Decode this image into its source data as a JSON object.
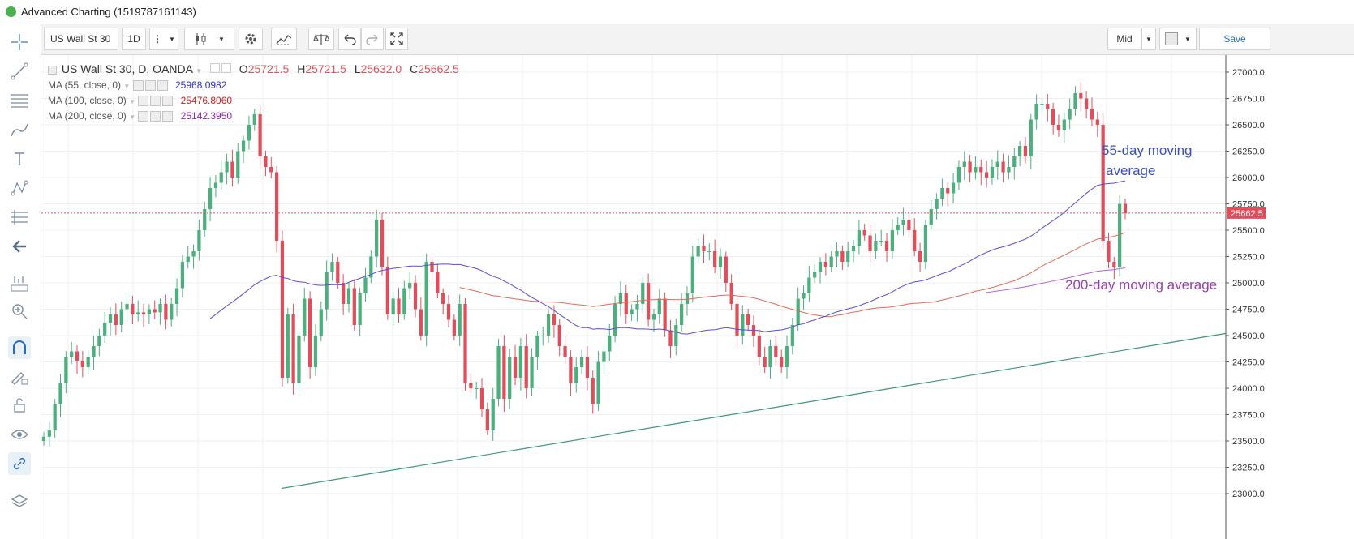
{
  "window": {
    "title": "Advanced Charting (1519787161143)"
  },
  "toolbar": {
    "symbol": "US Wall St 30",
    "interval": "1D",
    "more": "⋮",
    "price_mode": "Mid",
    "save": "Save"
  },
  "legend": {
    "title": "US Wall St 30, D, OANDA",
    "ohlc": {
      "o_label": "O",
      "o": "25721.5",
      "h_label": "H",
      "h": "25721.5",
      "l_label": "L",
      "l": "25632.0",
      "c_label": "C",
      "c": "25662.5"
    },
    "studies": [
      {
        "label": "MA (55, close, 0)",
        "value": "25968.0982",
        "color": "#3030c0"
      },
      {
        "label": "MA (100, close, 0)",
        "value": "25476.8060",
        "color": "#d02020"
      },
      {
        "label": "MA (200, close, 0)",
        "value": "25142.3950",
        "color": "#9020c0"
      }
    ]
  },
  "colors": {
    "up": "#4caf7d",
    "down": "#e04e5c",
    "ma55": "#5a4fcf",
    "ma100": "#e06a5a",
    "ma200": "#b060d8",
    "trend": "#3a9a70",
    "annot_blue": "#3a4fbf",
    "annot_purple": "#9a40b0"
  },
  "icons": [
    "crosshair-icon",
    "trend-line-icon",
    "fib-icon",
    "brush-icon",
    "text-icon",
    "pattern-icon",
    "measure-icon",
    "back-arrow-icon",
    "ruler-icon",
    "zoom-in-icon",
    "magnet-icon",
    "lock-drawing-icon",
    "lock-icon",
    "eye-icon",
    "link-icon",
    "layers-icon",
    "candles-icon",
    "indicators-icon",
    "compare-icon",
    "undo-icon",
    "redo-icon",
    "fullscreen-icon",
    "settings-icon"
  ],
  "chart_data": {
    "type": "candlestick",
    "title": "US Wall St 30, D, OANDA",
    "ylim": [
      23000,
      27000
    ],
    "y_ticks": [
      "27000.0",
      "26750.0",
      "26500.0",
      "26250.0",
      "26000.0",
      "25750.0",
      "25500.0",
      "25250.0",
      "25000.0",
      "24750.0",
      "24500.0",
      "24250.0",
      "24000.0",
      "23750.0",
      "23500.0",
      "23250.0",
      "23000.0"
    ],
    "last_price": "25662.5",
    "close": [
      23540,
      23600,
      23850,
      24050,
      24300,
      24350,
      24260,
      24200,
      24300,
      24400,
      24500,
      24620,
      24700,
      24600,
      24750,
      24800,
      24700,
      24720,
      24700,
      24750,
      24720,
      24800,
      24650,
      24800,
      24950,
      25200,
      25250,
      25300,
      25500,
      25700,
      25900,
      25950,
      26050,
      26150,
      26000,
      26250,
      26350,
      26500,
      26600,
      26200,
      26100,
      26050,
      25400,
      24100,
      24700,
      24050,
      24500,
      24850,
      24200,
      24500,
      24750,
      25100,
      25200,
      25000,
      24800,
      24950,
      24600,
      24900,
      25050,
      25250,
      25600,
      25150,
      24700,
      24850,
      24700,
      24950,
      25000,
      24750,
      24500,
      25200,
      25100,
      24900,
      24800,
      24650,
      24500,
      24800,
      24050,
      24000,
      24000,
      23800,
      23600,
      23900,
      24400,
      23900,
      24300,
      24100,
      24400,
      24000,
      24300,
      24500,
      24500,
      24700,
      24600,
      24400,
      24300,
      24050,
      24200,
      24300,
      24100,
      23850,
      24250,
      24350,
      24500,
      24800,
      24900,
      24700,
      24750,
      24800,
      25000,
      24650,
      24700,
      24850,
      24550,
      24400,
      24600,
      24800,
      24900,
      25250,
      25350,
      25300,
      25300,
      25150,
      25250,
      25000,
      24800,
      24500,
      24700,
      24600,
      24500,
      24300,
      24200,
      24400,
      24300,
      24200,
      24400,
      24600,
      24850,
      24900,
      25050,
      25100,
      25200,
      25150,
      25250,
      25300,
      25200,
      25300,
      25350,
      25500,
      25450,
      25300,
      25400,
      25400,
      25300,
      25500,
      25550,
      25600,
      25500,
      25300,
      25200,
      25550,
      25700,
      25800,
      25900,
      25850,
      25950,
      26100,
      26150,
      26050,
      26100,
      26050,
      26000,
      26100,
      26150,
      26050,
      26100,
      26200,
      26300,
      26200,
      26550,
      26700,
      26700,
      26650,
      26500,
      26450,
      26550,
      26650,
      26800,
      26750,
      26650,
      26550,
      26500,
      25400,
      25200,
      25150,
      25750,
      25662.5
    ],
    "series": [
      {
        "name": "MA (55, close, 0)",
        "value": 25968.0982
      },
      {
        "name": "MA (100, close, 0)",
        "value": 25476.806
      },
      {
        "name": "MA (200, close, 0)",
        "value": 25142.395
      }
    ],
    "annotations": [
      {
        "text": "55-day moving",
        "text2": "average"
      },
      {
        "text": "200-day moving average"
      }
    ],
    "trendline": {
      "from": 23050,
      "to": 24520
    }
  }
}
